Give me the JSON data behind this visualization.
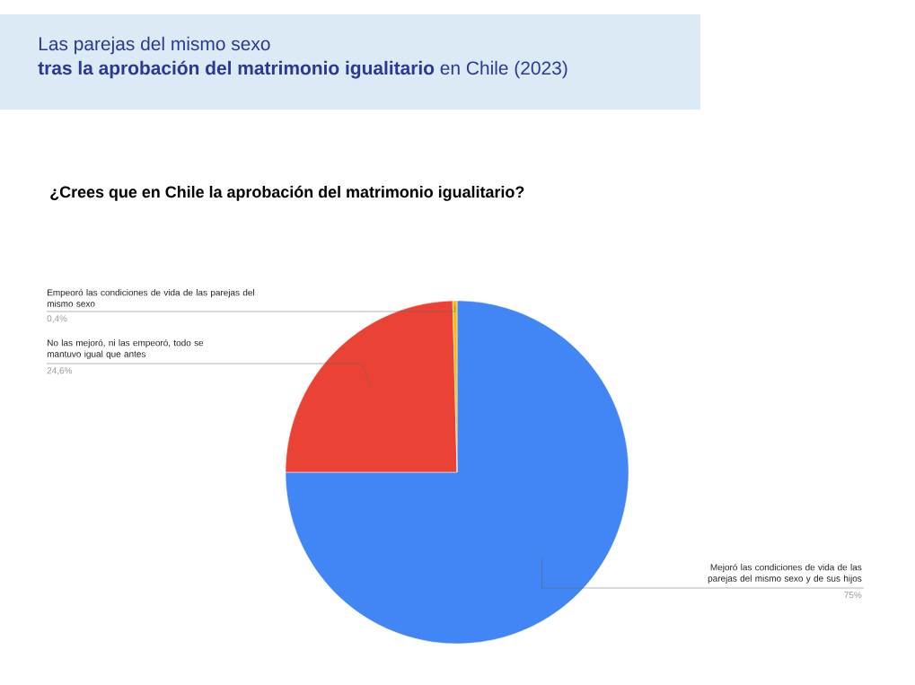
{
  "chart_data": {
    "type": "pie",
    "title": "Las parejas del mismo sexo",
    "subtitle": "**tras la aprobación del matrimonio igualitario** en Chile (2023)",
    "annotations": [
      "¿Crees que en Chile la aprobación del matrimonio igualitario?"
    ],
    "categories": [
      "Mejoró las condiciones de vida de las parejas del mismo sexo y de sus hijos",
      "No las mejoró, ni las empeoró, todo se mantuvo igual que antes",
      "Empeoró las condiciones de vida de las parejas del mismo sexo"
    ],
    "values": [
      75,
      24.6,
      0.4
    ],
    "colors": [
      "#4285f4",
      "#ea4335",
      "#fbbc04"
    ],
    "value_labels": [
      "75%",
      "24,6%",
      "0,4%"
    ]
  }
}
